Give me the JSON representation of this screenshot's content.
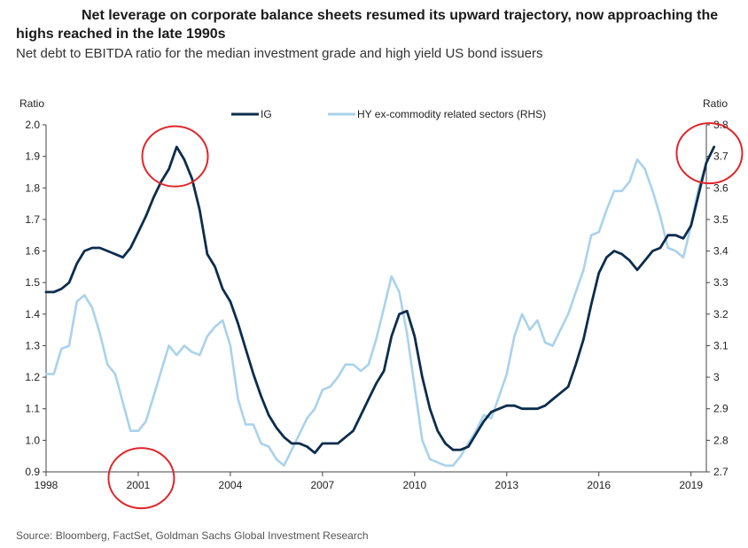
{
  "header": {
    "title_line1": "Net leverage on corporate balance sheets resumed its upward trajectory, now approaching the",
    "title_line2": "highs reached in the late 1990s",
    "subtitle": "Net debt to EBITDA ratio for the median investment grade and high yield US bond issuers"
  },
  "footer": {
    "source": "Source: Bloomberg, FactSet, Goldman Sachs Global Investment Research"
  },
  "colors": {
    "ig": "#0b2d4d",
    "hy": "#a9d2ec",
    "highlight": "#e0262b",
    "axis": "#444444"
  },
  "chart_data": {
    "type": "line",
    "left_axis_label": "Ratio",
    "right_axis_label": "Ratio",
    "x_ticks": [
      "1998",
      "2001",
      "2004",
      "2007",
      "2010",
      "2013",
      "2016",
      "2019"
    ],
    "xlim": [
      1998,
      2019.5
    ],
    "ylim_left": [
      0.9,
      2.0
    ],
    "ylim_right": [
      2.7,
      3.8
    ],
    "y_ticks_left": [
      "0.9",
      "1.0",
      "1.1",
      "1.2",
      "1.3",
      "1.4",
      "1.5",
      "1.6",
      "1.7",
      "1.8",
      "1.9",
      "2.0"
    ],
    "y_ticks_right": [
      "2.7",
      "2.8",
      "2.9",
      "3",
      "3.1",
      "3.2",
      "3.3",
      "3.4",
      "3.5",
      "3.6",
      "3.7",
      "3.8"
    ],
    "legend": "top-center",
    "series": [
      {
        "name": "IG",
        "axis": "left",
        "points": [
          [
            1998.0,
            1.47
          ],
          [
            1998.25,
            1.47
          ],
          [
            1998.5,
            1.48
          ],
          [
            1998.75,
            1.5
          ],
          [
            1999.0,
            1.56
          ],
          [
            1999.25,
            1.6
          ],
          [
            1999.5,
            1.61
          ],
          [
            1999.75,
            1.61
          ],
          [
            2000.0,
            1.6
          ],
          [
            2000.25,
            1.59
          ],
          [
            2000.5,
            1.58
          ],
          [
            2000.75,
            1.61
          ],
          [
            2001.0,
            1.66
          ],
          [
            2001.25,
            1.71
          ],
          [
            2001.5,
            1.77
          ],
          [
            2001.75,
            1.82
          ],
          [
            2002.0,
            1.86
          ],
          [
            2002.25,
            1.93
          ],
          [
            2002.5,
            1.89
          ],
          [
            2002.75,
            1.83
          ],
          [
            2003.0,
            1.73
          ],
          [
            2003.25,
            1.59
          ],
          [
            2003.5,
            1.55
          ],
          [
            2003.75,
            1.48
          ],
          [
            2004.0,
            1.44
          ],
          [
            2004.25,
            1.37
          ],
          [
            2004.5,
            1.29
          ],
          [
            2004.75,
            1.21
          ],
          [
            2005.0,
            1.14
          ],
          [
            2005.25,
            1.08
          ],
          [
            2005.5,
            1.04
          ],
          [
            2005.75,
            1.01
          ],
          [
            2006.0,
            0.99
          ],
          [
            2006.25,
            0.99
          ],
          [
            2006.5,
            0.98
          ],
          [
            2006.75,
            0.96
          ],
          [
            2007.0,
            0.99
          ],
          [
            2007.25,
            0.99
          ],
          [
            2007.5,
            0.99
          ],
          [
            2007.75,
            1.01
          ],
          [
            2008.0,
            1.03
          ],
          [
            2008.25,
            1.08
          ],
          [
            2008.5,
            1.13
          ],
          [
            2008.75,
            1.18
          ],
          [
            2009.0,
            1.22
          ],
          [
            2009.25,
            1.33
          ],
          [
            2009.5,
            1.4
          ],
          [
            2009.75,
            1.41
          ],
          [
            2010.0,
            1.33
          ],
          [
            2010.25,
            1.2
          ],
          [
            2010.5,
            1.1
          ],
          [
            2010.75,
            1.03
          ],
          [
            2011.0,
            0.99
          ],
          [
            2011.25,
            0.97
          ],
          [
            2011.5,
            0.97
          ],
          [
            2011.75,
            0.98
          ],
          [
            2012.0,
            1.02
          ],
          [
            2012.25,
            1.06
          ],
          [
            2012.5,
            1.09
          ],
          [
            2012.75,
            1.1
          ],
          [
            2013.0,
            1.11
          ],
          [
            2013.25,
            1.11
          ],
          [
            2013.5,
            1.1
          ],
          [
            2013.75,
            1.1
          ],
          [
            2014.0,
            1.1
          ],
          [
            2014.25,
            1.11
          ],
          [
            2014.5,
            1.13
          ],
          [
            2014.75,
            1.15
          ],
          [
            2015.0,
            1.17
          ],
          [
            2015.25,
            1.24
          ],
          [
            2015.5,
            1.32
          ],
          [
            2015.75,
            1.43
          ],
          [
            2016.0,
            1.53
          ],
          [
            2016.25,
            1.58
          ],
          [
            2016.5,
            1.6
          ],
          [
            2016.75,
            1.59
          ],
          [
            2017.0,
            1.57
          ],
          [
            2017.25,
            1.54
          ],
          [
            2017.5,
            1.57
          ],
          [
            2017.75,
            1.6
          ],
          [
            2018.0,
            1.61
          ],
          [
            2018.25,
            1.65
          ],
          [
            2018.5,
            1.65
          ],
          [
            2018.75,
            1.64
          ],
          [
            2019.0,
            1.68
          ],
          [
            2019.25,
            1.78
          ],
          [
            2019.5,
            1.88
          ],
          [
            2019.75,
            1.93
          ]
        ]
      },
      {
        "name": "HY ex-commodity related sectors (RHS)",
        "axis": "right",
        "points": [
          [
            1998.0,
            3.01
          ],
          [
            1998.25,
            3.01
          ],
          [
            1998.5,
            3.09
          ],
          [
            1998.75,
            3.1
          ],
          [
            1999.0,
            3.24
          ],
          [
            1999.25,
            3.26
          ],
          [
            1999.5,
            3.22
          ],
          [
            1999.75,
            3.14
          ],
          [
            2000.0,
            3.04
          ],
          [
            2000.25,
            3.01
          ],
          [
            2000.5,
            2.92
          ],
          [
            2000.75,
            2.83
          ],
          [
            2001.0,
            2.83
          ],
          [
            2001.25,
            2.86
          ],
          [
            2001.5,
            2.94
          ],
          [
            2001.75,
            3.02
          ],
          [
            2002.0,
            3.1
          ],
          [
            2002.25,
            3.07
          ],
          [
            2002.5,
            3.1
          ],
          [
            2002.75,
            3.08
          ],
          [
            2003.0,
            3.07
          ],
          [
            2003.25,
            3.13
          ],
          [
            2003.5,
            3.16
          ],
          [
            2003.75,
            3.18
          ],
          [
            2004.0,
            3.1
          ],
          [
            2004.25,
            2.93
          ],
          [
            2004.5,
            2.85
          ],
          [
            2004.75,
            2.85
          ],
          [
            2005.0,
            2.79
          ],
          [
            2005.25,
            2.78
          ],
          [
            2005.5,
            2.74
          ],
          [
            2005.75,
            2.72
          ],
          [
            2006.0,
            2.77
          ],
          [
            2006.25,
            2.82
          ],
          [
            2006.5,
            2.87
          ],
          [
            2006.75,
            2.9
          ],
          [
            2007.0,
            2.96
          ],
          [
            2007.25,
            2.97
          ],
          [
            2007.5,
            3.0
          ],
          [
            2007.75,
            3.04
          ],
          [
            2008.0,
            3.04
          ],
          [
            2008.25,
            3.02
          ],
          [
            2008.5,
            3.04
          ],
          [
            2008.75,
            3.12
          ],
          [
            2009.0,
            3.22
          ],
          [
            2009.25,
            3.32
          ],
          [
            2009.5,
            3.27
          ],
          [
            2009.75,
            3.14
          ],
          [
            2010.0,
            2.97
          ],
          [
            2010.25,
            2.8
          ],
          [
            2010.5,
            2.74
          ],
          [
            2010.75,
            2.73
          ],
          [
            2011.0,
            2.72
          ],
          [
            2011.25,
            2.72
          ],
          [
            2011.5,
            2.75
          ],
          [
            2011.75,
            2.79
          ],
          [
            2012.0,
            2.83
          ],
          [
            2012.25,
            2.88
          ],
          [
            2012.5,
            2.87
          ],
          [
            2012.75,
            2.94
          ],
          [
            2013.0,
            3.01
          ],
          [
            2013.25,
            3.13
          ],
          [
            2013.5,
            3.2
          ],
          [
            2013.75,
            3.15
          ],
          [
            2014.0,
            3.18
          ],
          [
            2014.25,
            3.11
          ],
          [
            2014.5,
            3.1
          ],
          [
            2014.75,
            3.15
          ],
          [
            2015.0,
            3.2
          ],
          [
            2015.25,
            3.27
          ],
          [
            2015.5,
            3.34
          ],
          [
            2015.75,
            3.45
          ],
          [
            2016.0,
            3.46
          ],
          [
            2016.25,
            3.53
          ],
          [
            2016.5,
            3.59
          ],
          [
            2016.75,
            3.59
          ],
          [
            2017.0,
            3.62
          ],
          [
            2017.25,
            3.69
          ],
          [
            2017.5,
            3.66
          ],
          [
            2017.75,
            3.59
          ],
          [
            2018.0,
            3.51
          ],
          [
            2018.25,
            3.41
          ],
          [
            2018.5,
            3.4
          ],
          [
            2018.75,
            3.38
          ],
          [
            2019.0,
            3.48
          ],
          [
            2019.25,
            3.6
          ],
          [
            2019.5,
            3.68
          ]
        ]
      }
    ],
    "highlights": [
      {
        "target": "IG 2002 peak",
        "cx": 2002.2,
        "cy_left": 1.9
      },
      {
        "target": "2001 x-axis label",
        "cx": 2001.1,
        "cy_left": 0.88
      },
      {
        "target": "IG 2019 level",
        "cx": 2019.6,
        "cy_left": 1.91
      }
    ]
  }
}
